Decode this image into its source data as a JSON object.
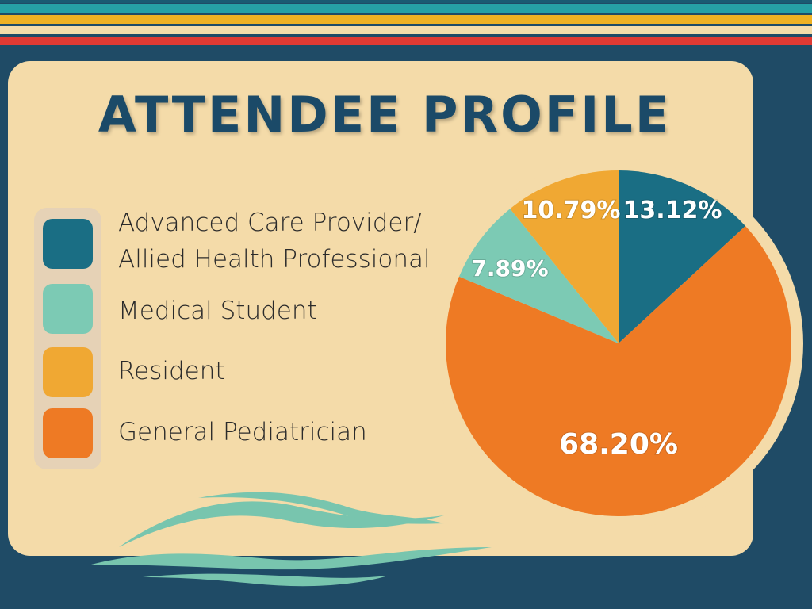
{
  "chart_data": {
    "type": "pie",
    "title": "ATTENDEE PROFILE",
    "start": "top, clockwise",
    "slices": [
      {
        "name": "Advanced Care Provider/ Allied Health Professional",
        "value": 13.12,
        "label": "13.12%",
        "color": "#1a6e84"
      },
      {
        "name": "General Pediatrician",
        "value": 68.2,
        "label": "68.20%",
        "color": "#ee7a24"
      },
      {
        "name": "Medical Student",
        "value": 7.89,
        "label": "7.89%",
        "color": "#7ccab4"
      },
      {
        "name": "Resident",
        "value": 10.79,
        "label": "10.79%",
        "color": "#f0a833"
      }
    ],
    "legend": {
      "placement": "left",
      "entries": [
        {
          "line1": "Advanced Care Provider/",
          "line2": "Allied Health Professional",
          "color": "#1a6e84"
        },
        {
          "line1": "Medical Student",
          "color": "#7ccab4"
        },
        {
          "line1": "Resident",
          "color": "#f0a833"
        },
        {
          "line1": "General Pediatrician",
          "color": "#ee7a24"
        }
      ]
    }
  }
}
